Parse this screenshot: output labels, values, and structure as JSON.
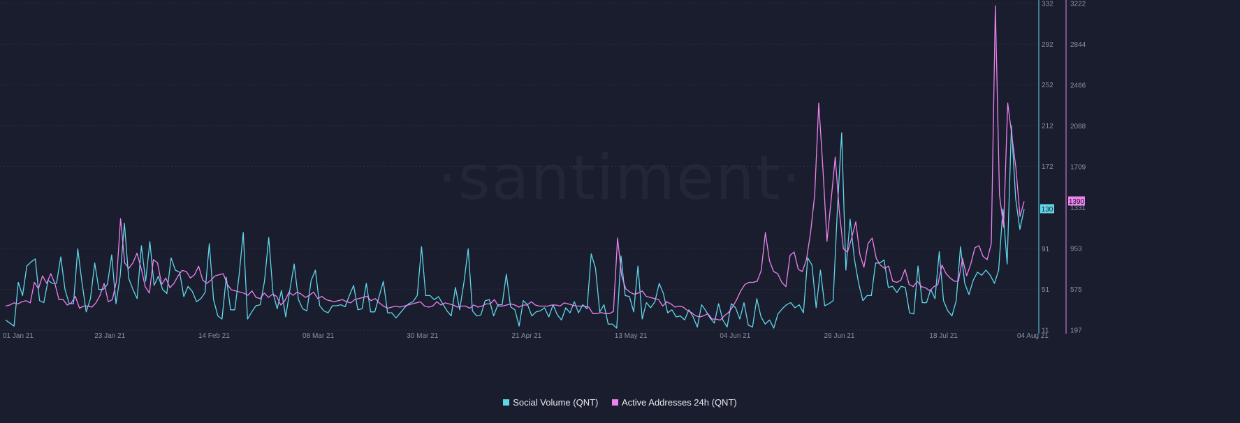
{
  "chart_data": {
    "type": "line",
    "watermark": "·santiment·",
    "x_start": "2021-01-01",
    "x_end": "2021-08-04",
    "x_ticks": [
      {
        "label": "01 Jan 21",
        "date": "2021-01-01"
      },
      {
        "label": "23 Jan 21",
        "date": "2021-01-23"
      },
      {
        "label": "14 Feb 21",
        "date": "2021-02-14"
      },
      {
        "label": "08 Mar 21",
        "date": "2021-03-08"
      },
      {
        "label": "30 Mar 21",
        "date": "2021-03-30"
      },
      {
        "label": "21 Apr 21",
        "date": "2021-04-21"
      },
      {
        "label": "13 May 21",
        "date": "2021-05-13"
      },
      {
        "label": "04 Jun 21",
        "date": "2021-06-04"
      },
      {
        "label": "26 Jun 21",
        "date": "2021-06-26"
      },
      {
        "label": "18 Jul 21",
        "date": "2021-07-18"
      },
      {
        "label": "04 Aug 21",
        "date": "2021-08-04"
      }
    ],
    "axes": {
      "left": {
        "ylim": [
          11,
          332
        ],
        "ticks": [
          "332",
          "292",
          "252",
          "212",
          "172",
          "130",
          "91",
          "51",
          "11"
        ],
        "tick_values": [
          332,
          292,
          252,
          212,
          172,
          130,
          91,
          51,
          11
        ],
        "color": "#5fd7e8",
        "current_value": "130"
      },
      "right": {
        "ylim": [
          197,
          3222
        ],
        "ticks": [
          "3222",
          "2844",
          "2466",
          "2088",
          "1709",
          "1390",
          "1331",
          "953",
          "575",
          "197"
        ],
        "tick_values": [
          3222,
          2844,
          2466,
          2088,
          1709,
          1390,
          1331,
          953,
          575,
          197
        ],
        "color": "#ee82ee",
        "current_value": "1390"
      }
    },
    "series": [
      {
        "name": "Social Volume (QNT)",
        "axis": "left",
        "color": "#5fd7e8",
        "values": [
          21,
          18,
          15,
          58,
          45,
          74,
          78,
          81,
          40,
          38,
          60,
          57,
          57,
          83,
          51,
          37,
          37,
          91,
          58,
          29,
          42,
          77,
          51,
          51,
          56,
          85,
          37,
          64,
          116,
          62,
          51,
          42,
          94,
          59,
          98,
          55,
          64,
          51,
          47,
          82,
          70,
          68,
          44,
          54,
          49,
          39,
          42,
          48,
          96,
          41,
          25,
          22,
          63,
          31,
          31,
          64,
          107,
          22,
          29,
          35,
          36,
          59,
          102,
          48,
          32,
          50,
          24,
          51,
          76,
          41,
          32,
          30,
          60,
          70,
          35,
          30,
          28,
          35,
          35,
          36,
          34,
          45,
          55,
          31,
          32,
          57,
          29,
          29,
          44,
          59,
          28,
          28,
          23,
          28,
          33,
          37,
          39,
          45,
          93,
          45,
          45,
          41,
          44,
          37,
          30,
          25,
          53,
          31,
          58,
          91,
          30,
          25,
          26,
          40,
          41,
          25,
          36,
          36,
          66,
          34,
          31,
          15,
          40,
          36,
          25,
          29,
          30,
          33,
          24,
          36,
          26,
          21,
          33,
          28,
          39,
          28,
          36,
          32,
          86,
          72,
          29,
          36,
          17,
          17,
          13,
          84,
          45,
          44,
          29,
          74,
          22,
          38,
          33,
          39,
          57,
          47,
          28,
          31,
          24,
          25,
          21,
          31,
          24,
          14,
          36,
          30,
          23,
          18,
          37,
          21,
          14,
          37,
          33,
          22,
          38,
          16,
          14,
          42,
          24,
          17,
          21,
          13,
          27,
          32,
          36,
          38,
          33,
          36,
          28,
          82,
          75,
          33,
          70,
          35,
          37,
          40,
          130,
          205,
          70,
          120,
          81,
          57,
          40,
          45,
          45,
          77,
          77,
          80,
          53,
          54,
          48,
          54,
          53,
          28,
          27,
          74,
          38,
          38,
          51,
          42,
          88,
          40,
          30,
          25,
          40,
          93,
          57,
          46,
          60,
          68,
          65,
          70,
          65,
          57,
          70,
          130,
          76,
          212,
          140,
          110,
          130
        ]
      },
      {
        "name": "Active Addresses 24h (QNT)",
        "axis": "right",
        "color": "#ee82ee",
        "values": [
          420,
          430,
          450,
          440,
          460,
          470,
          450,
          640,
          580,
          700,
          630,
          720,
          630,
          480,
          480,
          430,
          450,
          510,
          400,
          420,
          420,
          410,
          450,
          520,
          630,
          460,
          480,
          650,
          1230,
          820,
          770,
          820,
          910,
          770,
          600,
          540,
          850,
          820,
          620,
          680,
          590,
          630,
          700,
          750,
          740,
          680,
          710,
          790,
          660,
          630,
          660,
          700,
          710,
          720,
          620,
          570,
          560,
          550,
          540,
          520,
          560,
          500,
          490,
          540,
          500,
          530,
          510,
          430,
          470,
          550,
          520,
          550,
          530,
          500,
          520,
          550,
          490,
          510,
          480,
          470,
          460,
          470,
          480,
          460,
          450,
          480,
          490,
          500,
          510,
          470,
          490,
          450,
          420,
          400,
          410,
          420,
          410,
          420,
          430,
          440,
          450,
          460,
          420,
          410,
          420,
          460,
          430,
          450,
          440,
          430,
          410,
          420,
          420,
          400,
          430,
          410,
          420,
          440,
          440,
          480,
          420,
          420,
          430,
          440,
          430,
          410,
          430,
          430,
          460,
          430,
          420,
          420,
          420,
          430,
          430,
          420,
          450,
          440,
          430,
          420,
          420,
          420,
          410,
          350,
          350,
          360,
          350,
          350,
          370,
          1050,
          700,
          580,
          550,
          530,
          540,
          560,
          510,
          500,
          490,
          480,
          420,
          460,
          440,
          410,
          420,
          410,
          380,
          360,
          330,
          320,
          330,
          350,
          300,
          300,
          290,
          330,
          360,
          410,
          480,
          560,
          620,
          640,
          640,
          650,
          750,
          1100,
          840,
          740,
          720,
          640,
          600,
          890,
          920,
          760,
          740,
          850,
          1100,
          1450,
          2300,
          1700,
          1020,
          1400,
          1800,
          1300,
          950,
          920,
          1050,
          1200,
          900,
          780,
          1000,
          1050,
          860,
          800,
          770,
          790,
          650,
          640,
          660,
          760,
          620,
          600,
          650,
          600,
          590,
          560,
          600,
          620,
          800,
          720,
          680,
          650,
          650,
          860,
          700,
          810,
          960,
          980,
          880,
          850,
          1000,
          3200,
          1450,
          1150,
          2300,
          2000,
          1700,
          1250,
          1390
        ]
      }
    ],
    "legend": {
      "placement": "bottom-center"
    }
  }
}
